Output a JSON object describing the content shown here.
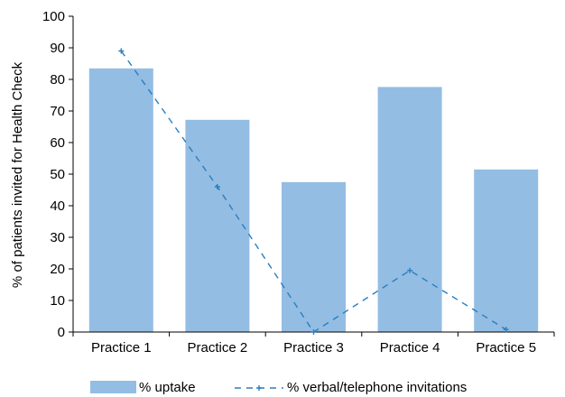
{
  "chart_data": {
    "type": "bar",
    "categories": [
      "Practice 1",
      "Practice 2",
      "Practice 3",
      "Practice 4",
      "Practice 5"
    ],
    "series": [
      {
        "name": "% uptake",
        "type": "bar",
        "values": [
          83.5,
          67.2,
          47.5,
          77.6,
          51.5
        ],
        "color": "#94bde3"
      },
      {
        "name": "% verbal/telephone invitations",
        "type": "line",
        "values": [
          89,
          46,
          0,
          19.5,
          0.8
        ],
        "color": "#2a7fbf",
        "style": "dashed",
        "marker": "plus"
      }
    ],
    "ylabel": "% of patients invited for Health Check",
    "xlabel": "",
    "ylim": [
      0,
      100
    ],
    "yticks": [
      0,
      10,
      20,
      30,
      40,
      50,
      60,
      70,
      80,
      90,
      100
    ],
    "grid": false,
    "legend_position": "bottom"
  }
}
